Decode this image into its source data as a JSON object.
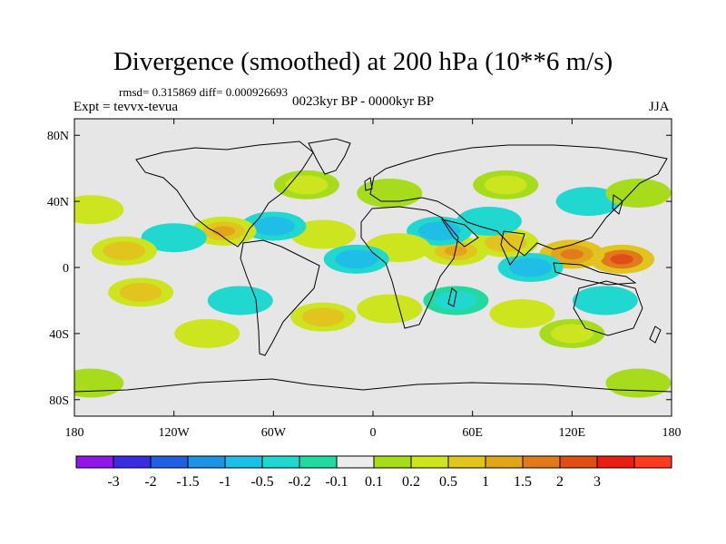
{
  "title": "Divergence (smoothed) at 200 hPa (10**6 m/s)",
  "stats": "rmsd= 0.315869 diff= 0.000926693",
  "experiment": "Expt = tevvx-tevua",
  "period": "0023kyr BP - 0000kyr BP",
  "season": "JJA",
  "map": {
    "projection": "cylindrical-equidistant",
    "lon_range": [
      -180,
      180
    ],
    "lat_range": [
      -90,
      90
    ],
    "x_ticks": [
      {
        "lon": -180,
        "label": "180"
      },
      {
        "lon": -120,
        "label": "120W"
      },
      {
        "lon": -60,
        "label": "60W"
      },
      {
        "lon": 0,
        "label": "0"
      },
      {
        "lon": 60,
        "label": "60E"
      },
      {
        "lon": 120,
        "label": "120E"
      },
      {
        "lon": 180,
        "label": "180"
      }
    ],
    "y_ticks": [
      {
        "lat": 80,
        "label": "80N"
      },
      {
        "lat": 40,
        "label": "40N"
      },
      {
        "lat": 0,
        "label": "0"
      },
      {
        "lat": -40,
        "label": "40S"
      },
      {
        "lat": -80,
        "label": "80S"
      }
    ],
    "background_color": "#e6e6e6"
  },
  "colorbar": {
    "colors": [
      "#8f18e8",
      "#3a2ce0",
      "#1f5fe0",
      "#1e93e6",
      "#1fbee6",
      "#20d8d0",
      "#22d9a0",
      "#ececec",
      "#a7dc1c",
      "#cde51e",
      "#e1c41e",
      "#e1a51c",
      "#e07a1a",
      "#e04e18",
      "#e81f10",
      "#ff3a1e"
    ],
    "labels": [
      "-3",
      "-2",
      "-1.5",
      "-1",
      "-0.5",
      "-0.2",
      "-0.1",
      "0.1",
      "0.2",
      "0.5",
      "1",
      "1.5",
      "2",
      "3"
    ]
  },
  "chart_data": {
    "type": "heatmap",
    "variable": "Divergence (smoothed) at 200 hPa",
    "units": "10**6 m/s",
    "contour_levels": [
      -3,
      -2,
      -1.5,
      -1,
      -0.5,
      -0.2,
      -0.1,
      0.1,
      0.2,
      0.5,
      1,
      1.5,
      2,
      3
    ],
    "regions": [
      {
        "lon": 150,
        "lat": 5,
        "value": 2.2
      },
      {
        "lon": 120,
        "lat": 8,
        "value": 1.6
      },
      {
        "lon": 95,
        "lat": 0,
        "value": -0.8
      },
      {
        "lon": 80,
        "lat": 15,
        "value": 0.8
      },
      {
        "lon": 70,
        "lat": 28,
        "value": -0.6
      },
      {
        "lon": 50,
        "lat": 10,
        "value": 1.2
      },
      {
        "lon": 40,
        "lat": 22,
        "value": -1.0
      },
      {
        "lon": 15,
        "lat": 12,
        "value": 0.6
      },
      {
        "lon": -10,
        "lat": 5,
        "value": -0.8
      },
      {
        "lon": -30,
        "lat": 20,
        "value": 0.7
      },
      {
        "lon": -60,
        "lat": 25,
        "value": -0.9
      },
      {
        "lon": -90,
        "lat": 22,
        "value": 1.0
      },
      {
        "lon": -120,
        "lat": 18,
        "value": -0.7
      },
      {
        "lon": -150,
        "lat": 10,
        "value": 0.9
      },
      {
        "lon": -170,
        "lat": 35,
        "value": 0.7
      },
      {
        "lon": -40,
        "lat": 50,
        "value": 0.5
      },
      {
        "lon": 10,
        "lat": 45,
        "value": 0.4
      },
      {
        "lon": 80,
        "lat": 50,
        "value": 0.5
      },
      {
        "lon": 130,
        "lat": 40,
        "value": -0.6
      },
      {
        "lon": 160,
        "lat": 45,
        "value": 0.4
      },
      {
        "lon": -140,
        "lat": -15,
        "value": 0.8
      },
      {
        "lon": -80,
        "lat": -20,
        "value": -0.7
      },
      {
        "lon": -30,
        "lat": -30,
        "value": 0.8
      },
      {
        "lon": 10,
        "lat": -25,
        "value": 0.7
      },
      {
        "lon": 50,
        "lat": -20,
        "value": -0.5
      },
      {
        "lon": 90,
        "lat": -28,
        "value": 0.6
      },
      {
        "lon": 140,
        "lat": -20,
        "value": -0.6
      },
      {
        "lon": -100,
        "lat": -40,
        "value": 0.6
      },
      {
        "lon": 120,
        "lat": -40,
        "value": 0.5
      },
      {
        "lon": -170,
        "lat": -70,
        "value": 0.2
      },
      {
        "lon": 160,
        "lat": -70,
        "value": 0.2
      }
    ]
  }
}
